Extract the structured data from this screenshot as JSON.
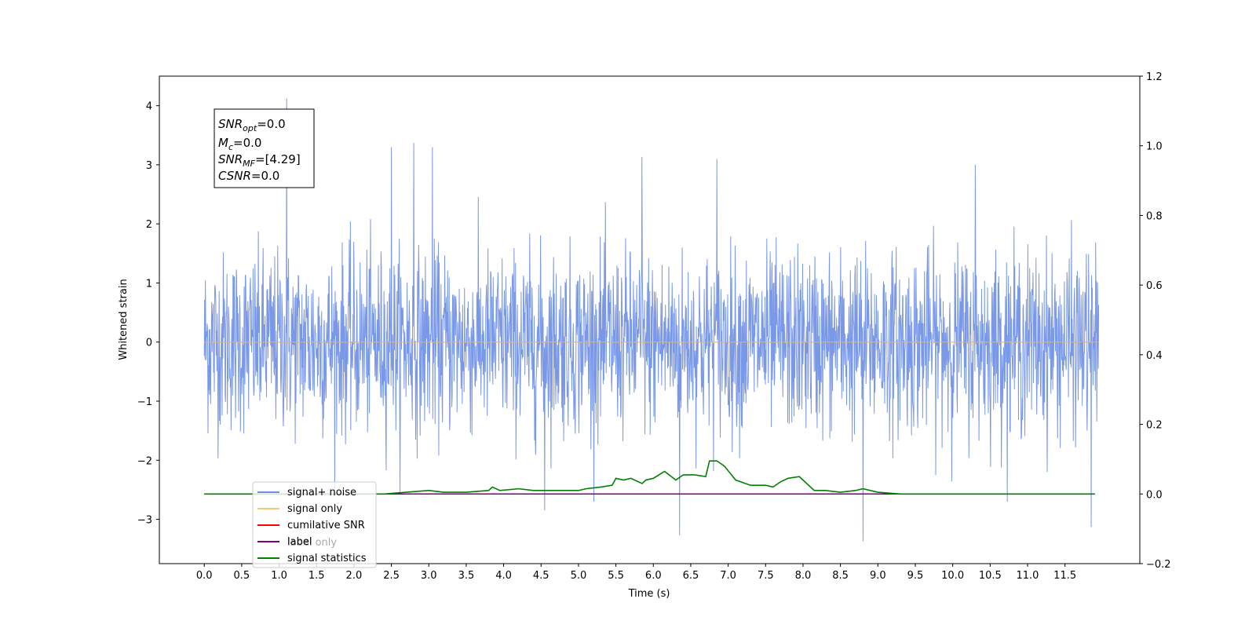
{
  "chart_data": {
    "type": "line",
    "xlabel": "Time (s)",
    "ylabel": "Whitened strain",
    "xlim": [
      -0.6,
      12.5
    ],
    "ylim": [
      -3.75,
      4.5
    ],
    "y2lim": [
      -0.2,
      1.2
    ],
    "xticks": [
      "0.0",
      "0.5",
      "1.0",
      "1.5",
      "2.0",
      "2.5",
      "3.0",
      "3.5",
      "4.0",
      "4.5",
      "5.0",
      "5.5",
      "6.0",
      "6.5",
      "7.0",
      "7.5",
      "8.0",
      "8.5",
      "9.0",
      "9.5",
      "10.0",
      "10.5",
      "11.0",
      "11.5"
    ],
    "yticks": [
      "4",
      "3",
      "2",
      "1",
      "0",
      "−1",
      "−2",
      "−3"
    ],
    "y2ticks": [
      "1.2",
      "1.0",
      "0.8",
      "0.6",
      "0.4",
      "0.2",
      "0.0",
      "−0.2"
    ],
    "annotation": [
      {
        "base": "SNR",
        "sub": "opt",
        "rest": "=0.0"
      },
      {
        "base": "M",
        "sub": "c",
        "rest": "=0.0"
      },
      {
        "base": "SNR",
        "sub": "MF",
        "rest": "=[4.29]"
      },
      {
        "base": "CSNR",
        "sub": "",
        "rest": "=0.0"
      }
    ],
    "legend_position": "lower-left",
    "legend": [
      "signal+ noise",
      "signal only",
      "cumilative SNR",
      "label",
      "signal statistics"
    ],
    "legend_hidden_text": "label only",
    "colors": {
      "noise": "#6f8fe6",
      "signal": "#f5b041",
      "cumsnr": "#ff0000",
      "label": "#800080",
      "stats": "#008000"
    },
    "series": [
      {
        "name": "signal+ noise",
        "axis": "left",
        "description_range": [
          -3.4,
          4.15
        ],
        "peaks": [
          {
            "x": 1.1,
            "y": 4.12
          },
          {
            "x": 2.5,
            "y": 3.3
          },
          {
            "x": 2.8,
            "y": 3.37
          },
          {
            "x": 3.05,
            "y": 3.3
          },
          {
            "x": 5.85,
            "y": 3.13
          },
          {
            "x": 6.85,
            "y": 3.1
          },
          {
            "x": 10.3,
            "y": 3.0
          },
          {
            "x": 6.35,
            "y": -3.27
          },
          {
            "x": 8.8,
            "y": -3.37
          },
          {
            "x": 11.85,
            "y": -3.13
          },
          {
            "x": 4.55,
            "y": -2.85
          }
        ]
      },
      {
        "name": "signal only",
        "axis": "left",
        "x": [
          0.0,
          11.95
        ],
        "y": [
          0.0,
          0.0
        ]
      },
      {
        "name": "signal statistics",
        "axis": "right",
        "x": [
          0.0,
          2.4,
          2.7,
          3.0,
          3.2,
          3.5,
          3.8,
          3.85,
          3.95,
          4.2,
          4.4,
          4.7,
          5.0,
          5.1,
          5.3,
          5.45,
          5.5,
          5.6,
          5.7,
          5.85,
          5.9,
          6.0,
          6.15,
          6.3,
          6.4,
          6.55,
          6.7,
          6.75,
          6.85,
          6.95,
          7.1,
          7.3,
          7.5,
          7.6,
          7.7,
          7.8,
          7.95,
          8.15,
          8.3,
          8.5,
          8.7,
          8.8,
          9.0,
          9.3,
          11.9
        ],
        "y": [
          0.0,
          0.0,
          0.005,
          0.01,
          0.005,
          0.005,
          0.01,
          0.02,
          0.01,
          0.015,
          0.01,
          0.01,
          0.01,
          0.015,
          0.02,
          0.025,
          0.045,
          0.04,
          0.045,
          0.03,
          0.04,
          0.045,
          0.065,
          0.04,
          0.055,
          0.055,
          0.05,
          0.095,
          0.095,
          0.08,
          0.04,
          0.025,
          0.025,
          0.02,
          0.035,
          0.045,
          0.05,
          0.01,
          0.01,
          0.005,
          0.01,
          0.015,
          0.005,
          0.0,
          0.0
        ]
      },
      {
        "name": "label",
        "axis": "right",
        "x": [
          0.0,
          11.9
        ],
        "y": [
          0.0,
          0.0
        ]
      }
    ]
  }
}
